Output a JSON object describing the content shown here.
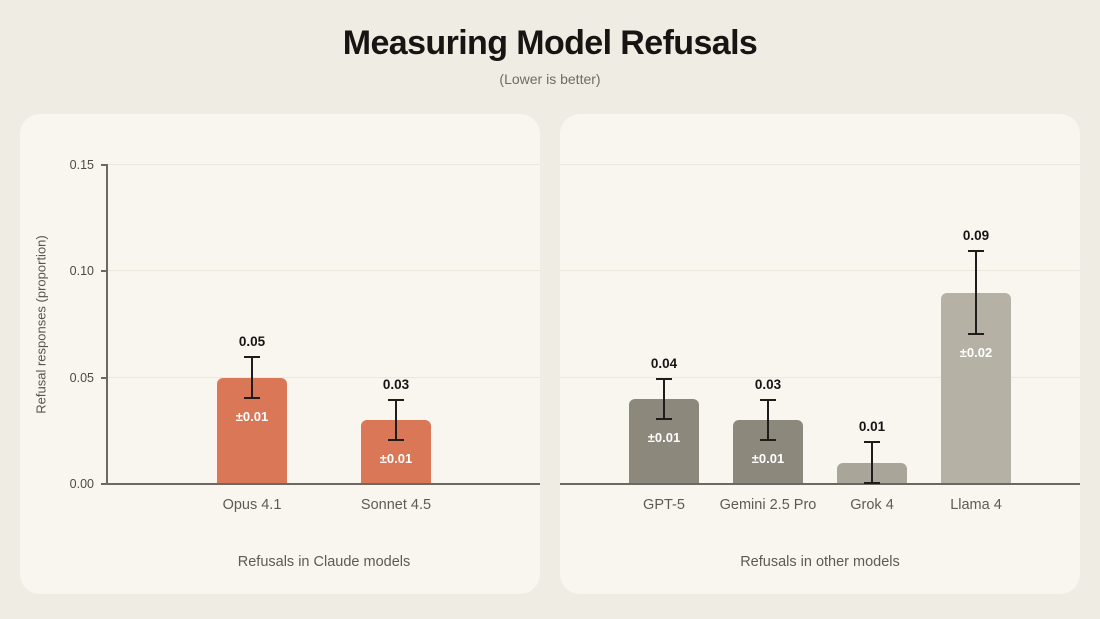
{
  "page": {
    "title": "Measuring Model Refusals",
    "subtitle": "(Lower is better)"
  },
  "axis": {
    "ylabel": "Refusal responses (proportion)",
    "ytick_values": [
      0,
      0.05,
      0.1,
      0.15
    ],
    "ytick_labels": [
      "0.00",
      "0.05",
      "0.10",
      "0.15"
    ],
    "ymax": 0.15
  },
  "chart_data": [
    {
      "type": "bar",
      "panel": "claude-models",
      "caption": "Refusals in Claude models",
      "categories": [
        "Opus 4.1",
        "Sonnet 4.5"
      ],
      "values": [
        0.05,
        0.03
      ],
      "errors": [
        0.01,
        0.01
      ],
      "value_labels": [
        "0.05",
        "0.03"
      ],
      "error_labels": [
        "±0.01",
        "±0.01"
      ],
      "bar_colors": [
        "#D97757",
        "#D97757"
      ],
      "ylim": [
        0,
        0.15
      ],
      "show_y_axis": true,
      "grid": true
    },
    {
      "type": "bar",
      "panel": "other-models",
      "caption": "Refusals in other models",
      "categories": [
        "GPT-5",
        "Gemini 2.5 Pro",
        "Grok 4",
        "Llama 4"
      ],
      "values": [
        0.04,
        0.03,
        0.01,
        0.09
      ],
      "errors": [
        0.01,
        0.01,
        0.01,
        0.02
      ],
      "value_labels": [
        "0.04",
        "0.03",
        "0.01",
        "0.09"
      ],
      "error_labels": [
        "±0.01",
        "±0.01",
        null,
        "±0.02"
      ],
      "bar_colors": [
        "#8C887C",
        "#8C887C",
        "#A9A599",
        "#B5B1A5"
      ],
      "ylim": [
        0,
        0.15
      ],
      "show_y_axis": false,
      "grid": true
    }
  ],
  "colors": {
    "page_background": "#EFECE3",
    "card_background": "#F8F6EF",
    "accent_coral": "#D97757",
    "axis_gray": "#6B6A62",
    "text_dark": "#161513",
    "text_muted": "#5C5B54",
    "error_bar": "#1E1D1B"
  }
}
